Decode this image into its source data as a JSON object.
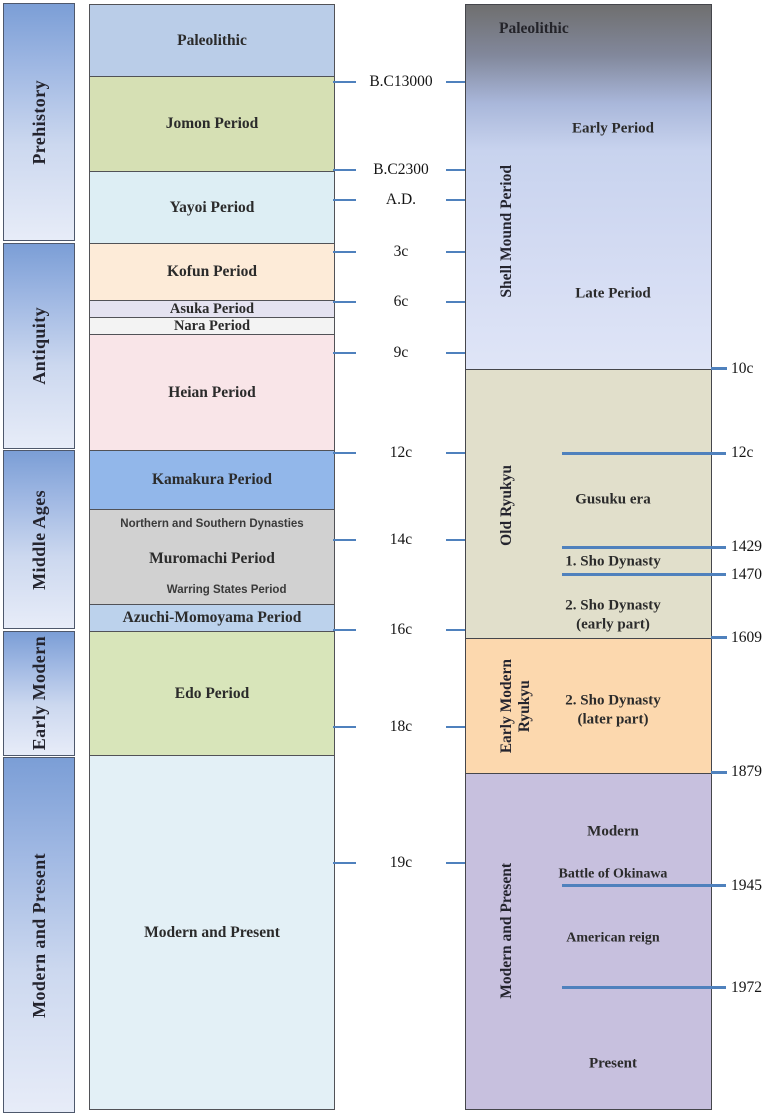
{
  "left_eras": [
    {
      "label": "Prehistory"
    },
    {
      "label": "Antiquity"
    },
    {
      "label": "Middle Ages"
    },
    {
      "label": "Early Modern"
    },
    {
      "label": "Modern and Present"
    }
  ],
  "japan": {
    "periods": [
      {
        "label": "Paleolithic"
      },
      {
        "label": "Jomon Period"
      },
      {
        "label": "Yayoi Period"
      },
      {
        "label": "Kofun Period"
      },
      {
        "label": "Asuka Period"
      },
      {
        "label": "Nara Period"
      },
      {
        "label": "Heian Period"
      },
      {
        "label": "Kamakura Period"
      },
      {
        "label": "Muromachi Period"
      },
      {
        "label": "Azuchi-Momoyama Period"
      },
      {
        "label": "Edo Period"
      },
      {
        "label": "Modern and Present"
      }
    ],
    "muromachi_sub_top": "Northern and Southern Dynasties",
    "muromachi_sub_bottom": "Warring States Period"
  },
  "center_axis": {
    "ticks": [
      "B.C13000",
      "B.C2300",
      "A.D.",
      "3c",
      "6c",
      "9c",
      "12c",
      "14c",
      "16c",
      "18c",
      "19c"
    ]
  },
  "okinawa": {
    "paleolithic": "Paleolithic",
    "shell_mound": {
      "era_label": "Shell Mound Period",
      "early": "Early Period",
      "late": "Late Period"
    },
    "old_ryukyu": {
      "era_label": "Old Ryukyu",
      "gusuku": "Gusuku era",
      "first_sho": "1. Sho Dynasty",
      "second_sho_early": "2. Sho Dynasty\n(early part)"
    },
    "early_modern_ryukyu": {
      "era_label": "Early Modern\nRyukyu",
      "second_sho_later": "2. Sho Dynasty\n(later part)"
    },
    "modern_present": {
      "era_label": "Modern and Present",
      "modern": "Modern",
      "battle": "Battle of Okinawa",
      "american": "American reign",
      "present": "Present"
    }
  },
  "right_axis": {
    "ticks": [
      "10c",
      "12c",
      "1429",
      "1470",
      "1609",
      "1879",
      "1945",
      "1972"
    ]
  },
  "colors": {
    "axis_line": "#4f81bd",
    "era_gradient_top": "#7b9ed6",
    "era_gradient_bottom": "#e7ecf8",
    "jomon_green": "#d6e0b4",
    "kamakura_blue": "#92b7ea",
    "old_ryukyu_khaki": "#e1dfcb",
    "early_modern_orange": "#fcd8ae",
    "modern_purple": "#c7c0de",
    "shell_gradient_top": "#6f6f6f",
    "shell_gradient_bottom": "#dfe5f7"
  }
}
